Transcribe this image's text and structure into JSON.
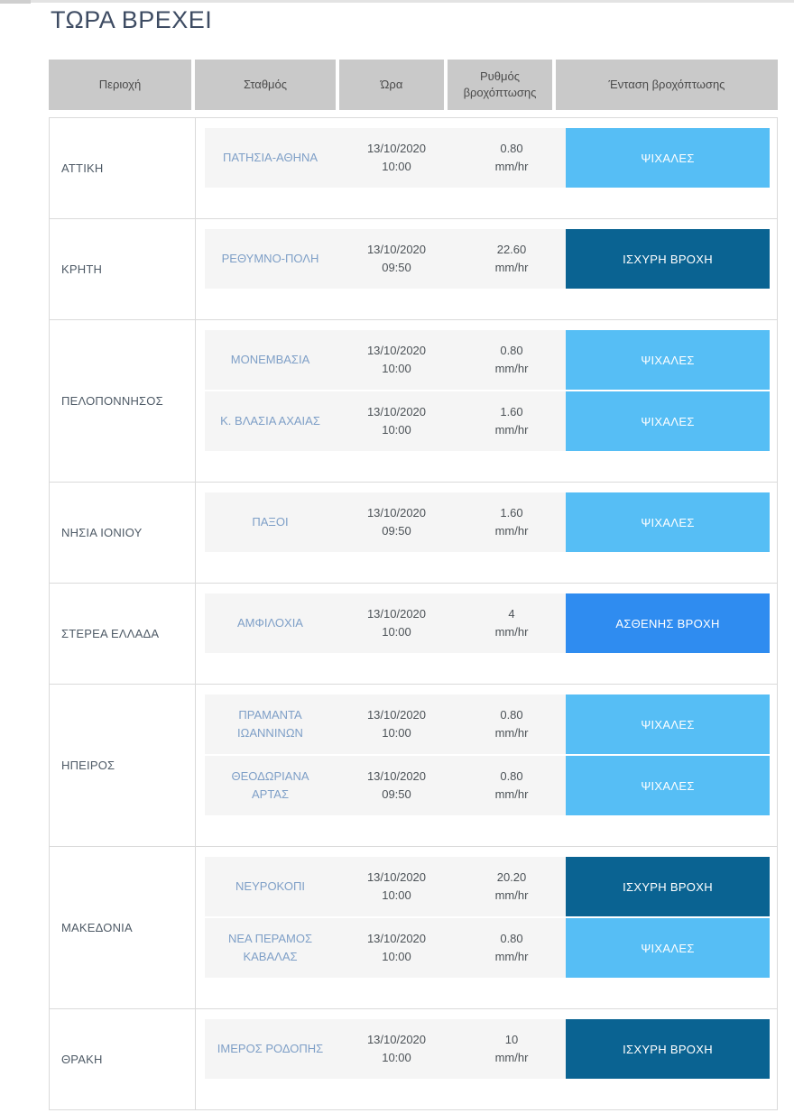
{
  "page": {
    "title": "ΤΩΡΑ ΒΡΕΧΕΙ"
  },
  "table": {
    "headers": [
      "Περιοχή",
      "Σταθμός",
      "Ώρα",
      "Ρυθμός βροχόπτωσης",
      "Ένταση βροχόπτωσης"
    ],
    "intensity_colors": {
      "ΨΙΧΑΛΕΣ": "#56bef5",
      "ΑΣΘΕΝΗΣ ΒΡΟΧΗ": "#2f8cf0",
      "ΙΣΧΥΡΗ ΒΡΟΧΗ": "#0a6392"
    },
    "badge_text_color": "#ffffff",
    "regions": [
      {
        "name": "ΑΤΤΙΚΗ",
        "stations": [
          {
            "station": "ΠΑΤΗΣΙΑ-ΑΘΗΝΑ",
            "date": "13/10/2020",
            "time": "10:00",
            "rate": "0.80",
            "rate_unit": "mm/hr",
            "intensity": "ΨΙΧΑΛΕΣ"
          }
        ]
      },
      {
        "name": "ΚΡΗΤΗ",
        "stations": [
          {
            "station": "ΡΕΘΥΜΝΟ-ΠΟΛΗ",
            "date": "13/10/2020",
            "time": "09:50",
            "rate": "22.60",
            "rate_unit": "mm/hr",
            "intensity": "ΙΣΧΥΡΗ ΒΡΟΧΗ"
          }
        ]
      },
      {
        "name": "ΠΕΛΟΠΟΝΝΗΣΟΣ",
        "stations": [
          {
            "station": "ΜΟΝΕΜΒΑΣΙΑ",
            "date": "13/10/2020",
            "time": "10:00",
            "rate": "0.80",
            "rate_unit": "mm/hr",
            "intensity": "ΨΙΧΑΛΕΣ"
          },
          {
            "station": "Κ. ΒΛΑΣΙΑ ΑΧΑΙΑΣ",
            "date": "13/10/2020",
            "time": "10:00",
            "rate": "1.60",
            "rate_unit": "mm/hr",
            "intensity": "ΨΙΧΑΛΕΣ"
          }
        ]
      },
      {
        "name": "ΝΗΣΙΑ ΙΟΝΙΟΥ",
        "stations": [
          {
            "station": "ΠΑΞΟΙ",
            "date": "13/10/2020",
            "time": "09:50",
            "rate": "1.60",
            "rate_unit": "mm/hr",
            "intensity": "ΨΙΧΑΛΕΣ"
          }
        ]
      },
      {
        "name": "ΣΤΕΡΕΑ ΕΛΛΑΔΑ",
        "stations": [
          {
            "station": "ΑΜΦΙΛΟΧΙΑ",
            "date": "13/10/2020",
            "time": "10:00",
            "rate": "4",
            "rate_unit": "mm/hr",
            "intensity": "ΑΣΘΕΝΗΣ ΒΡΟΧΗ"
          }
        ]
      },
      {
        "name": "ΗΠΕΙΡΟΣ",
        "stations": [
          {
            "station": "ΠΡΑΜΑΝΤΑ ΙΩΑΝΝΙΝΩΝ",
            "date": "13/10/2020",
            "time": "10:00",
            "rate": "0.80",
            "rate_unit": "mm/hr",
            "intensity": "ΨΙΧΑΛΕΣ"
          },
          {
            "station": "ΘΕΟΔΩΡΙΑΝΑ ΑΡΤΑΣ",
            "date": "13/10/2020",
            "time": "09:50",
            "rate": "0.80",
            "rate_unit": "mm/hr",
            "intensity": "ΨΙΧΑΛΕΣ"
          }
        ]
      },
      {
        "name": "ΜΑΚΕΔΟΝΙΑ",
        "stations": [
          {
            "station": "ΝΕΥΡΟΚΟΠΙ",
            "date": "13/10/2020",
            "time": "10:00",
            "rate": "20.20",
            "rate_unit": "mm/hr",
            "intensity": "ΙΣΧΥΡΗ ΒΡΟΧΗ"
          },
          {
            "station": "ΝΕΑ ΠΕΡΑΜΟΣ ΚΑΒΑΛΑΣ",
            "date": "13/10/2020",
            "time": "10:00",
            "rate": "0.80",
            "rate_unit": "mm/hr",
            "intensity": "ΨΙΧΑΛΕΣ"
          }
        ]
      },
      {
        "name": "ΘΡΑΚΗ",
        "stations": [
          {
            "station": "ΙΜΕΡΟΣ ΡΟΔΟΠΗΣ",
            "date": "13/10/2020",
            "time": "10:00",
            "rate": "10",
            "rate_unit": "mm/hr",
            "intensity": "ΙΣΧΥΡΗ ΒΡΟΧΗ"
          }
        ]
      }
    ]
  }
}
